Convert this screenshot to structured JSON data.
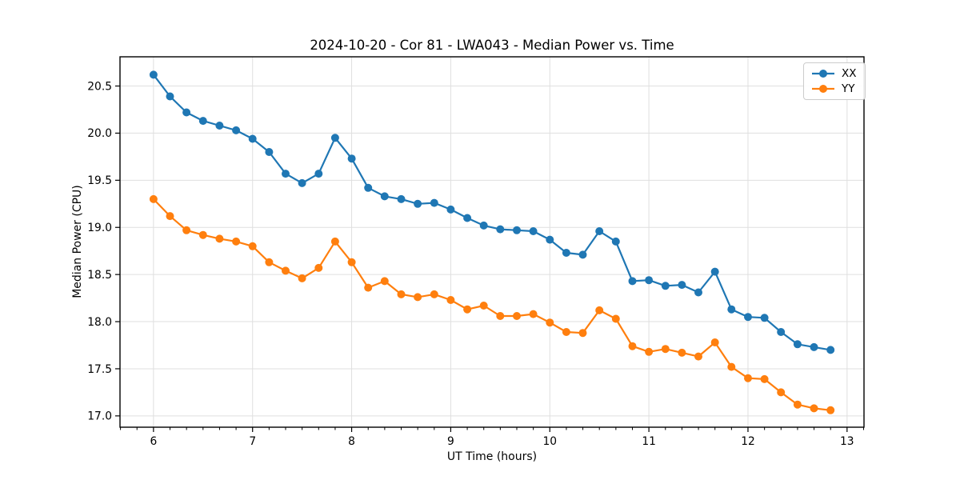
{
  "chart": {
    "title": "2024-10-20 - Cor 81 - LWA043 - Median Power vs. Time",
    "xlabel": "UT Time (hours)",
    "ylabel": "Median Power (CPU)"
  },
  "legend": {
    "items": [
      {
        "label": "XX",
        "color": "#1f77b4"
      },
      {
        "label": "YY",
        "color": "#ff7f0e"
      }
    ],
    "position": "upper right"
  },
  "chart_data": {
    "type": "line",
    "title": "2024-10-20 - Cor 81 - LWA043 - Median Power vs. Time",
    "xlabel": "UT Time (hours)",
    "ylabel": "Median Power (CPU)",
    "xlim": [
      5.662,
      13.171
    ],
    "ylim": [
      16.88,
      20.81
    ],
    "x_ticks": [
      6,
      7,
      8,
      9,
      10,
      11,
      12,
      13
    ],
    "y_ticks": [
      17.0,
      17.5,
      18.0,
      18.5,
      19.0,
      19.5,
      20.0,
      20.5
    ],
    "x_minor_tick_step": 0.16667,
    "grid": true,
    "marker": "o",
    "x": [
      6.0,
      6.1667,
      6.3333,
      6.5,
      6.6667,
      6.8333,
      7.0,
      7.1667,
      7.3333,
      7.5,
      7.6667,
      7.8333,
      8.0,
      8.1667,
      8.3333,
      8.5,
      8.6667,
      8.8333,
      9.0,
      9.1667,
      9.3333,
      9.5,
      9.6667,
      9.8333,
      10.0,
      10.1667,
      10.3333,
      10.5,
      10.6667,
      10.8333,
      11.0,
      11.1667,
      11.3333,
      11.5,
      11.6667,
      11.8333,
      12.0,
      12.1667,
      12.3333,
      12.5,
      12.6667,
      12.8333
    ],
    "series": [
      {
        "name": "XX",
        "color": "#1f77b4",
        "values": [
          20.62,
          20.39,
          20.22,
          20.13,
          20.08,
          20.03,
          19.94,
          19.8,
          19.57,
          19.47,
          19.57,
          19.95,
          19.73,
          19.42,
          19.33,
          19.3,
          19.25,
          19.26,
          19.19,
          19.1,
          19.02,
          18.98,
          18.97,
          18.96,
          18.87,
          18.73,
          18.71,
          18.96,
          18.85,
          18.43,
          18.44,
          18.38,
          18.39,
          18.31,
          18.53,
          18.13,
          18.05,
          18.04,
          17.89,
          17.76,
          17.73,
          17.7
        ]
      },
      {
        "name": "YY",
        "color": "#ff7f0e",
        "values": [
          19.3,
          19.12,
          18.97,
          18.92,
          18.88,
          18.85,
          18.8,
          18.63,
          18.54,
          18.46,
          18.57,
          18.85,
          18.63,
          18.36,
          18.43,
          18.29,
          18.26,
          18.29,
          18.23,
          18.13,
          18.17,
          18.06,
          18.06,
          18.08,
          17.99,
          17.89,
          17.88,
          18.12,
          18.03,
          17.74,
          17.68,
          17.71,
          17.67,
          17.63,
          17.78,
          17.52,
          17.4,
          17.39,
          17.25,
          17.12,
          17.08,
          17.06
        ]
      }
    ]
  }
}
